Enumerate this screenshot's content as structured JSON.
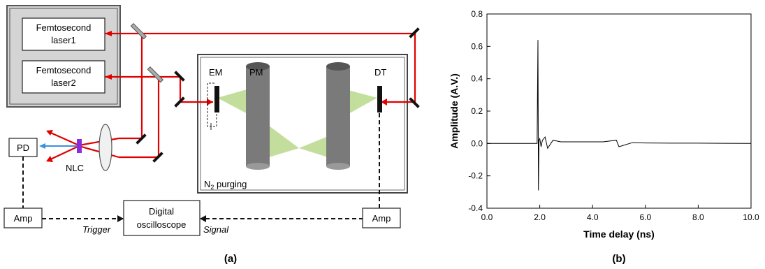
{
  "diagram": {
    "laser1_label": [
      "Femtosecond",
      "laser1"
    ],
    "laser2_label": [
      "Femtosecond",
      "laser2"
    ],
    "pd_label": "PD",
    "nlc_label": "NLC",
    "em_label": "EM",
    "pm_label": "PM",
    "dt_label": "DT",
    "n2_label": "N",
    "n2_sub": "2",
    "n2_rest": " purging",
    "amp_left_label": "Amp",
    "amp_right_label": "Amp",
    "scope_label": [
      "Digital",
      "oscilloscope"
    ],
    "trigger_label": "Trigger",
    "signal_label": "Signal",
    "panel_label": "(a)",
    "colors": {
      "beam": "#e00000",
      "probe": "#3b8fe0",
      "thz": "#b9d98b",
      "crystal": "#8a2be2"
    }
  },
  "chart_data": {
    "type": "line",
    "panel_label": "(b)",
    "xlabel": "Time delay (ns)",
    "ylabel": "Amplitude (A.V.)",
    "xlim": [
      0.0,
      10.0
    ],
    "ylim": [
      -0.4,
      0.8
    ],
    "xticks": [
      "0.0",
      "2.0",
      "4.0",
      "6.0",
      "8.0",
      "10.0"
    ],
    "yticks": [
      "-0.4",
      "-0.2",
      "0.0",
      "0.2",
      "0.4",
      "0.6",
      "0.8"
    ],
    "series": [
      {
        "x": [
          0.0,
          1.85,
          1.9,
          1.93,
          1.95,
          1.97,
          2.0,
          2.05,
          2.1,
          2.2,
          2.3,
          2.5,
          2.8,
          3.2,
          3.6,
          4.0,
          4.4,
          4.9,
          5.0,
          5.5,
          6.0,
          7.0,
          8.0,
          9.0,
          10.0
        ],
        "y": [
          0.0,
          0.0,
          0.0,
          0.64,
          -0.29,
          0.02,
          0.03,
          -0.02,
          0.02,
          0.04,
          -0.03,
          0.02,
          0.01,
          0.01,
          0.01,
          0.01,
          0.01,
          0.02,
          -0.02,
          0.005,
          0.003,
          0.002,
          0.002,
          0.001,
          0.0
        ]
      }
    ]
  }
}
